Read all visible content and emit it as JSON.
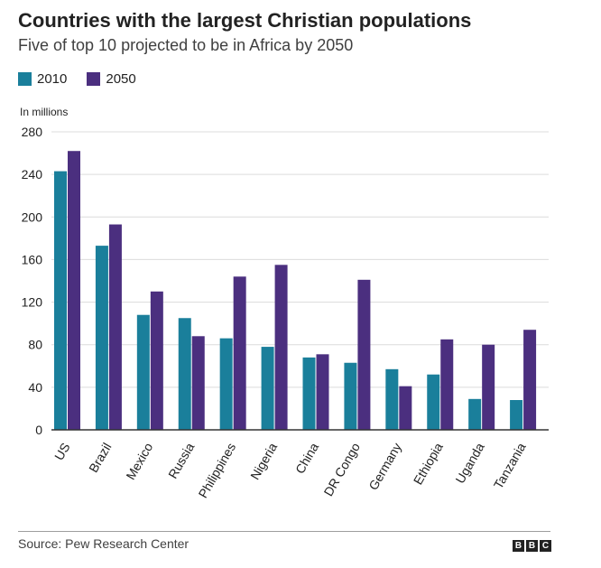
{
  "chart_data": {
    "type": "bar",
    "title": "Countries with the largest Christian populations",
    "subtitle": "Five of top 10 projected to be in Africa by 2050",
    "ylabel": "In millions",
    "xlabel": "",
    "ylim": [
      0,
      280
    ],
    "yticks": [
      0,
      40,
      80,
      120,
      160,
      200,
      240,
      280
    ],
    "categories": [
      "US",
      "Brazil",
      "Mexico",
      "Russia",
      "Philippines",
      "Nigeria",
      "China",
      "DR Congo",
      "Germany",
      "Ethiopia",
      "Uganda",
      "Tanzania"
    ],
    "series": [
      {
        "name": "2010",
        "color": "#1a7f9b",
        "values": [
          243,
          173,
          108,
          105,
          86,
          78,
          68,
          63,
          57,
          52,
          29,
          28
        ]
      },
      {
        "name": "2050",
        "color": "#4b2f7f",
        "values": [
          262,
          193,
          130,
          88,
          144,
          155,
          71,
          141,
          41,
          85,
          80,
          94
        ]
      }
    ],
    "grid": true,
    "legend_position": "top-left"
  },
  "legend": {
    "items": [
      {
        "label": "2010",
        "color": "#1a7f9b"
      },
      {
        "label": "2050",
        "color": "#4b2f7f"
      }
    ]
  },
  "footer": {
    "source": "Source: Pew Research Center",
    "logo_letters": [
      "B",
      "B",
      "C"
    ]
  }
}
